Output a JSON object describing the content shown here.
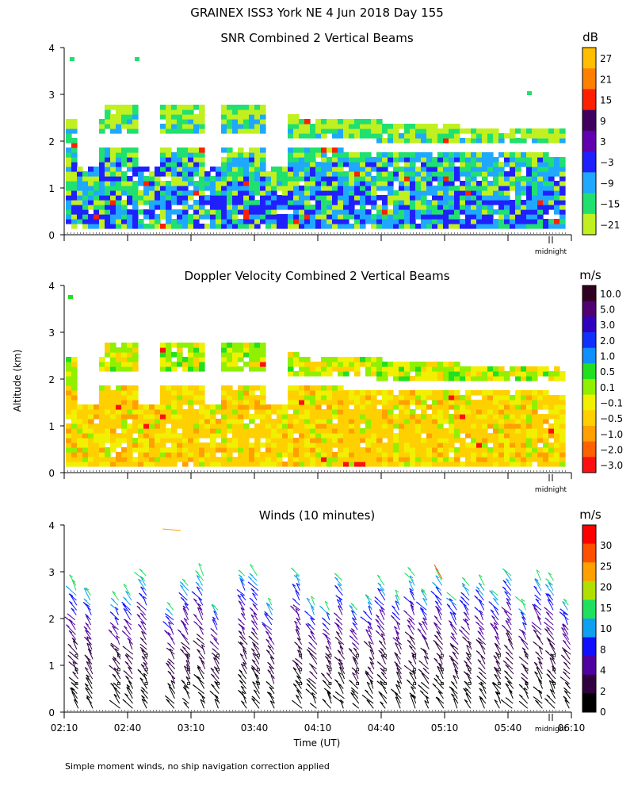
{
  "figure": {
    "title": "GRAINEX ISS3 York NE   4 Jun 2018 Day 155",
    "ylabel": "Altitude (km)",
    "xlabel": "Time (UT)",
    "footnote": "Simple moment winds, no ship navigation correction applied",
    "midnight_label": "midnight"
  },
  "chart_data": [
    {
      "type": "heatmap",
      "title": "SNR Combined 2 Vertical Beams",
      "ylabel": "Altitude (km)",
      "y_ticks": [
        "0",
        "1",
        "2",
        "3",
        "4"
      ],
      "ylim": [
        0,
        4
      ],
      "colorbar": {
        "unit": "dB",
        "labels": [
          "27",
          "21",
          "15",
          "9",
          "3",
          "−3",
          "−9",
          "−15",
          "−21"
        ],
        "colors": [
          "#ffbf00",
          "#ff8000",
          "#ff2000",
          "#400060",
          "#6000b0",
          "#2020ff",
          "#20a8ff",
          "#20e070",
          "#c0f020"
        ]
      },
      "coverage_note": "echoes mostly between 0.1 and 2.5 km, strongest SNR below 1 km"
    },
    {
      "type": "heatmap",
      "title": "Doppler Velocity Combined 2 Vertical Beams",
      "y_ticks": [
        "0",
        "1",
        "2",
        "3",
        "4"
      ],
      "ylim": [
        0,
        4
      ],
      "colorbar": {
        "unit": "m/s",
        "labels": [
          "10.0",
          "5.0",
          "3.0",
          "2.0",
          "1.0",
          "0.5",
          "0.1",
          "−0.1",
          "−0.5",
          "−1.0",
          "−2.0",
          "−3.0"
        ],
        "colors": [
          "#300020",
          "#500070",
          "#3000c0",
          "#1030ff",
          "#1090ff",
          "#20e020",
          "#90f000",
          "#f0f000",
          "#ffd000",
          "#ffa000",
          "#ff6000",
          "#ff1010"
        ]
      }
    },
    {
      "type": "scatter",
      "title": "Winds (10 minutes)",
      "xlabel": "Time (UT)",
      "x_ticks": [
        "02:10",
        "02:40",
        "03:10",
        "03:40",
        "04:10",
        "04:40",
        "05:10",
        "05:40",
        "06:10"
      ],
      "y_ticks": [
        "0",
        "1",
        "2",
        "3",
        "4"
      ],
      "ylim": [
        0,
        4
      ],
      "colorbar": {
        "unit": "m/s",
        "labels": [
          "30",
          "25",
          "20",
          "15",
          "10",
          "8",
          "4",
          "2",
          "0"
        ],
        "colors": [
          "#ff0000",
          "#ff5000",
          "#ffa000",
          "#b0e000",
          "#20e060",
          "#10a0f0",
          "#1010ff",
          "#5000a0",
          "#300040",
          "#000000"
        ]
      },
      "profile_times": [
        "02:16",
        "02:23",
        "02:36",
        "02:42",
        "02:49",
        "03:02",
        "03:09",
        "03:16",
        "03:23",
        "03:36",
        "03:42",
        "03:49",
        "04:02",
        "04:09",
        "04:16",
        "04:22",
        "04:29",
        "04:36",
        "04:42",
        "04:49",
        "04:56",
        "05:02",
        "05:09",
        "05:16",
        "05:22",
        "05:29",
        "05:36",
        "05:42",
        "05:49",
        "05:56",
        "06:02",
        "06:09"
      ]
    }
  ]
}
